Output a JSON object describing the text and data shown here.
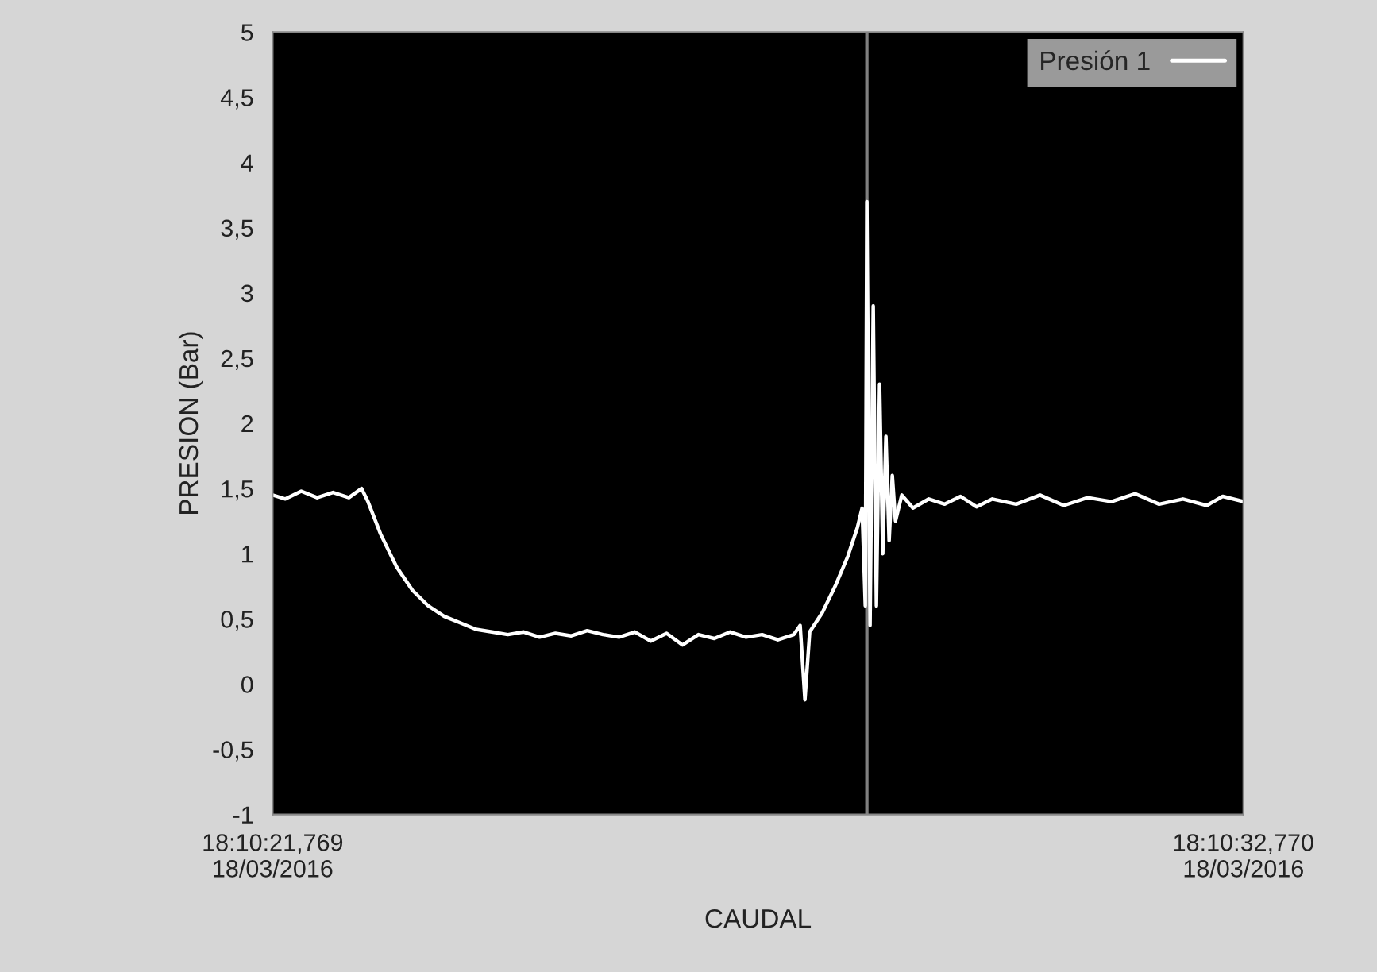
{
  "chart_data": {
    "type": "line",
    "xlabel": "CAUDAL",
    "ylabel": "PRESION (Bar)",
    "xlim": [
      "2016-03-18T18:10:21.769",
      "2016-03-18T18:10:32.770"
    ],
    "xticks": [
      {
        "value": "2016-03-18T18:10:21.769",
        "label": "18:10:21,769\n18/03/2016"
      },
      {
        "value": "2016-03-18T18:10:32.770",
        "label": "18:10:32,770\n18/03/2016"
      }
    ],
    "ylim": [
      -1,
      5
    ],
    "yticks": [
      -1,
      {
        "value": -0.5,
        "label": "-0,5"
      },
      0,
      {
        "value": 0.5,
        "label": "0,5"
      },
      1,
      {
        "value": 1.5,
        "label": "1,5"
      },
      2,
      {
        "value": 2.5,
        "label": "2,5"
      },
      3,
      {
        "value": 3.5,
        "label": "3,5"
      },
      4,
      {
        "value": 4.5,
        "label": "4,5"
      },
      5
    ],
    "legend": "top right",
    "marker": "none",
    "line_style": "solid",
    "ref_lines": [
      {
        "axis": "x",
        "value": "2016-03-18T18:10:28.503",
        "color": "#808080"
      }
    ],
    "series": [
      {
        "name": "Presión 1",
        "color": "#ffffff",
        "x": [
          "2016-03-18T18:10:21.769",
          "2016-03-18T18:10:21.913",
          "2016-03-18T18:10:22.093",
          "2016-03-18T18:10:22.273",
          "2016-03-18T18:10:22.453",
          "2016-03-18T18:10:22.633",
          "2016-03-18T18:10:22.777",
          "2016-03-18T18:10:22.849",
          "2016-03-18T18:10:22.993",
          "2016-03-18T18:10:23.173",
          "2016-03-18T18:10:23.353",
          "2016-03-18T18:10:23.533",
          "2016-03-18T18:10:23.713",
          "2016-03-18T18:10:23.894",
          "2016-03-18T18:10:24.074",
          "2016-03-18T18:10:24.254",
          "2016-03-18T18:10:24.434",
          "2016-03-18T18:10:24.614",
          "2016-03-18T18:10:24.794",
          "2016-03-18T18:10:24.974",
          "2016-03-18T18:10:25.154",
          "2016-03-18T18:10:25.334",
          "2016-03-18T18:10:25.514",
          "2016-03-18T18:10:25.694",
          "2016-03-18T18:10:25.874",
          "2016-03-18T18:10:26.054",
          "2016-03-18T18:10:26.234",
          "2016-03-18T18:10:26.414",
          "2016-03-18T18:10:26.594",
          "2016-03-18T18:10:26.774",
          "2016-03-18T18:10:26.954",
          "2016-03-18T18:10:27.134",
          "2016-03-18T18:10:27.315",
          "2016-03-18T18:10:27.495",
          "2016-03-18T18:10:27.675",
          "2016-03-18T18:10:27.747",
          "2016-03-18T18:10:27.801",
          "2016-03-18T18:10:27.855",
          "2016-03-18T18:10:27.999",
          "2016-03-18T18:10:28.143",
          "2016-03-18T18:10:28.287",
          "2016-03-18T18:10:28.395",
          "2016-03-18T18:10:28.449",
          "2016-03-18T18:10:28.485",
          "2016-03-18T18:10:28.503",
          "2016-03-18T18:10:28.539",
          "2016-03-18T18:10:28.575",
          "2016-03-18T18:10:28.611",
          "2016-03-18T18:10:28.647",
          "2016-03-18T18:10:28.683",
          "2016-03-18T18:10:28.719",
          "2016-03-18T18:10:28.755",
          "2016-03-18T18:10:28.791",
          "2016-03-18T18:10:28.827",
          "2016-03-18T18:10:28.899",
          "2016-03-18T18:10:29.025",
          "2016-03-18T18:10:29.205",
          "2016-03-18T18:10:29.385",
          "2016-03-18T18:10:29.565",
          "2016-03-18T18:10:29.745",
          "2016-03-18T18:10:29.925",
          "2016-03-18T18:10:30.195",
          "2016-03-18T18:10:30.465",
          "2016-03-18T18:10:30.735",
          "2016-03-18T18:10:31.005",
          "2016-03-18T18:10:31.275",
          "2016-03-18T18:10:31.545",
          "2016-03-18T18:10:31.815",
          "2016-03-18T18:10:32.085",
          "2016-03-18T18:10:32.355",
          "2016-03-18T18:10:32.535",
          "2016-03-18T18:10:32.770"
        ],
        "values": [
          1.45,
          1.42,
          1.48,
          1.43,
          1.47,
          1.43,
          1.5,
          1.4,
          1.15,
          0.9,
          0.72,
          0.6,
          0.52,
          0.47,
          0.42,
          0.4,
          0.38,
          0.4,
          0.36,
          0.39,
          0.37,
          0.41,
          0.38,
          0.36,
          0.4,
          0.33,
          0.39,
          0.3,
          0.38,
          0.35,
          0.4,
          0.36,
          0.38,
          0.34,
          0.38,
          0.45,
          -0.12,
          0.4,
          0.55,
          0.75,
          0.98,
          1.2,
          1.35,
          0.6,
          3.7,
          0.45,
          2.9,
          0.6,
          2.3,
          1.0,
          1.9,
          1.1,
          1.6,
          1.25,
          1.45,
          1.35,
          1.42,
          1.38,
          1.44,
          1.36,
          1.42,
          1.38,
          1.45,
          1.37,
          1.43,
          1.4,
          1.46,
          1.38,
          1.42,
          1.37,
          1.44,
          1.4
        ]
      }
    ]
  }
}
